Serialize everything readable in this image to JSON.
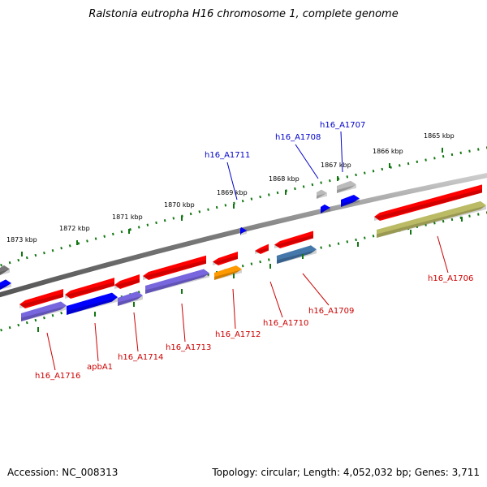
{
  "title": "Ralstonia eutropha H16 chromosome 1, complete genome",
  "footer": {
    "accession": "Accession: NC_008313",
    "topology": "Topology: circular; Length: 4,052,032 bp; Genes: 3,711"
  },
  "ticks": [
    "1873 kbp",
    "1872 kbp",
    "1871 kbp",
    "1870 kbp",
    "1869 kbp",
    "1868 kbp",
    "1867 kbp",
    "1866 kbp",
    "1865 kbp"
  ],
  "genes_outer": [
    "h16_A1711",
    "h16_A1708",
    "h16_A1707"
  ],
  "genes_inner": [
    "h16_A1716",
    "apbA1",
    "h16_A1714",
    "h16_A1713",
    "h16_A1712",
    "h16_A1710",
    "h16_A1709",
    "h16_A1706"
  ],
  "colors": {
    "label_outer": "#0000cc",
    "label_inner": "#cc0000",
    "red": "#ff0000",
    "purple": "#7766dd",
    "blue": "#0000ff",
    "steel": "#4477aa",
    "orange": "#ff9900",
    "olive": "#bbbb66",
    "grey": "#999999",
    "ticks": "#117711"
  }
}
